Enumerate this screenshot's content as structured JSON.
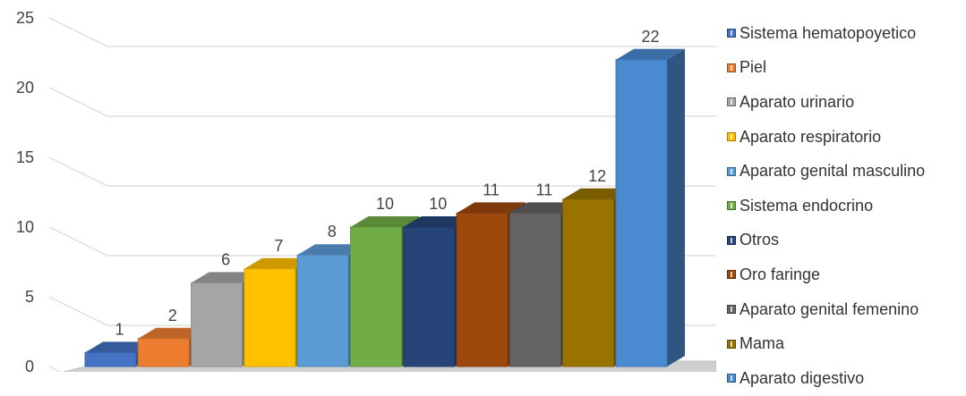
{
  "chart_data": {
    "type": "bar",
    "title": "",
    "xlabel": "",
    "ylabel": "",
    "ylim": [
      0,
      25
    ],
    "yticks": [
      0,
      5,
      10,
      15,
      20,
      25
    ],
    "ytick_labels": [
      "0",
      "5",
      "10",
      "15",
      "20",
      "25"
    ],
    "grid": true,
    "legend_position": "right",
    "categories": [
      "Sistema hematopoyetico",
      "Piel",
      "Aparato urinario",
      "Aparato respiratorio",
      "Aparato genital masculino",
      "Sistema endocrino",
      "Otros",
      "Oro faringe",
      "Aparato genital femenino",
      "Mama",
      "Aparato digestivo"
    ],
    "values": [
      1,
      2,
      6,
      7,
      8,
      10,
      10,
      11,
      11,
      12,
      22
    ],
    "colors": [
      "#4472C4",
      "#ED7D31",
      "#A5A5A5",
      "#FFC000",
      "#5B9BD5",
      "#70AD47",
      "#264478",
      "#9E480E",
      "#636363",
      "#997300",
      "#4A8AD0"
    ],
    "legend": [
      "Sistema hematopoyetico",
      "Piel",
      "Aparato urinario",
      "Aparato respiratorio",
      "Aparato genital masculino",
      "Sistema endocrino",
      "Otros",
      "Oro faringe",
      "Aparato genital femenino",
      "Mama",
      "Aparato digestivo"
    ]
  }
}
